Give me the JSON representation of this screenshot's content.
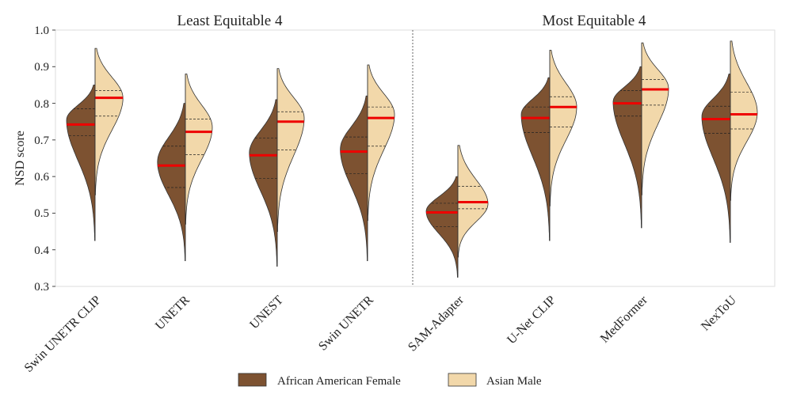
{
  "chart_data": {
    "type": "violin",
    "ylabel": "NSD score",
    "ylim": [
      0.3,
      1.0
    ],
    "yticks": [
      "0.3",
      "0.4",
      "0.5",
      "0.6",
      "0.7",
      "0.8",
      "0.9",
      "1.0"
    ],
    "panels": [
      {
        "title": "Least Equitable 4",
        "categories": [
          "Swin UNETR CLIP",
          "UNETR",
          "UNEST",
          "Swin UNETR"
        ]
      },
      {
        "title": "Most Equitable 4",
        "categories": [
          "SAM-Adapter",
          "U-Net CLIP",
          "MedFormer",
          "NexToU"
        ]
      }
    ],
    "legend": [
      {
        "name": "African American Female",
        "color": "#7d5231"
      },
      {
        "name": "Asian Male",
        "color": "#f2d8aa"
      }
    ],
    "median_color": "#ee0000",
    "series": [
      {
        "name": "Swin UNETR CLIP",
        "left": {
          "min": 0.425,
          "max": 0.85,
          "median": 0.742,
          "q1": 0.712,
          "q3": 0.785,
          "mode": 0.755,
          "width": 0.9
        },
        "right": {
          "min": 0.55,
          "max": 0.95,
          "median": 0.815,
          "q1": 0.765,
          "q3": 0.835,
          "mode": 0.815,
          "width": 0.88
        }
      },
      {
        "name": "UNETR",
        "left": {
          "min": 0.37,
          "max": 0.8,
          "median": 0.63,
          "q1": 0.57,
          "q3": 0.683,
          "mode": 0.64,
          "width": 0.88
        },
        "right": {
          "min": 0.47,
          "max": 0.88,
          "median": 0.722,
          "q1": 0.66,
          "q3": 0.757,
          "mode": 0.735,
          "width": 0.85
        }
      },
      {
        "name": "UNEST",
        "left": {
          "min": 0.355,
          "max": 0.81,
          "median": 0.658,
          "q1": 0.595,
          "q3": 0.705,
          "mode": 0.665,
          "width": 0.88
        },
        "right": {
          "min": 0.45,
          "max": 0.895,
          "median": 0.75,
          "q1": 0.673,
          "q3": 0.777,
          "mode": 0.76,
          "width": 0.85
        }
      },
      {
        "name": "Swin UNETR",
        "left": {
          "min": 0.37,
          "max": 0.82,
          "median": 0.668,
          "q1": 0.608,
          "q3": 0.708,
          "mode": 0.675,
          "width": 0.86
        },
        "right": {
          "min": 0.48,
          "max": 0.905,
          "median": 0.76,
          "q1": 0.683,
          "q3": 0.79,
          "mode": 0.77,
          "width": 0.85
        }
      },
      {
        "name": "SAM-Adapter",
        "left": {
          "min": 0.325,
          "max": 0.6,
          "median": 0.502,
          "q1": 0.463,
          "q3": 0.527,
          "mode": 0.505,
          "width": 1.0
        },
        "right": {
          "min": 0.38,
          "max": 0.685,
          "median": 0.53,
          "q1": 0.512,
          "q3": 0.573,
          "mode": 0.525,
          "width": 0.95
        }
      },
      {
        "name": "U-Net CLIP",
        "left": {
          "min": 0.425,
          "max": 0.87,
          "median": 0.76,
          "q1": 0.72,
          "q3": 0.79,
          "mode": 0.77,
          "width": 0.9
        },
        "right": {
          "min": 0.52,
          "max": 0.945,
          "median": 0.79,
          "q1": 0.735,
          "q3": 0.818,
          "mode": 0.79,
          "width": 0.85
        }
      },
      {
        "name": "MedFormer",
        "left": {
          "min": 0.46,
          "max": 0.9,
          "median": 0.8,
          "q1": 0.765,
          "q3": 0.835,
          "mode": 0.805,
          "width": 0.9
        },
        "right": {
          "min": 0.55,
          "max": 0.965,
          "median": 0.838,
          "q1": 0.795,
          "q3": 0.865,
          "mode": 0.84,
          "width": 0.85
        }
      },
      {
        "name": "NexToU",
        "left": {
          "min": 0.42,
          "max": 0.88,
          "median": 0.757,
          "q1": 0.718,
          "q3": 0.792,
          "mode": 0.765,
          "width": 0.9
        },
        "right": {
          "min": 0.535,
          "max": 0.97,
          "median": 0.77,
          "q1": 0.73,
          "q3": 0.83,
          "mode": 0.775,
          "width": 0.85
        }
      }
    ]
  }
}
